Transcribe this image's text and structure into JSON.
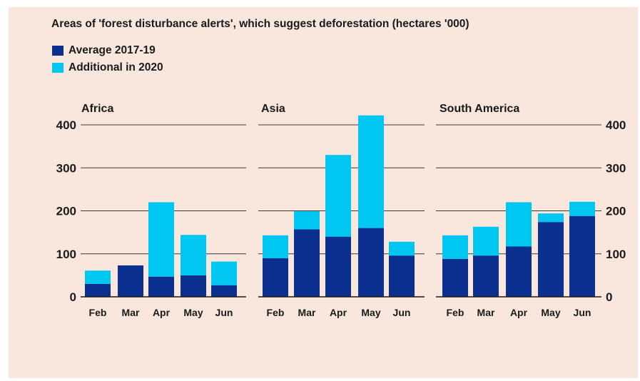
{
  "chart_data": {
    "type": "bar",
    "stacked": true,
    "title": "Areas of 'forest disturbance alerts', which suggest deforestation (hectares '000)",
    "ylim": [
      0,
      400
    ],
    "yticks": [
      0,
      100,
      200,
      300,
      400
    ],
    "legend": [
      {
        "name": "Average 2017-19",
        "color": "#0b2f8f"
      },
      {
        "name": "Additional in 2020",
        "color": "#00c6f2"
      }
    ],
    "categories": [
      "Feb",
      "Mar",
      "Apr",
      "May",
      "Jun"
    ],
    "panels": [
      {
        "title": "Africa",
        "series": [
          {
            "name": "Average 2017-19",
            "values": [
              30,
              73,
              47,
              50,
              27
            ]
          },
          {
            "name": "Additional in 2020",
            "values": [
              31,
              0,
              173,
              94,
              55
            ]
          }
        ]
      },
      {
        "title": "Asia",
        "series": [
          {
            "name": "Average 2017-19",
            "values": [
              90,
              157,
              140,
              160,
              96
            ]
          },
          {
            "name": "Additional in 2020",
            "values": [
              53,
              42,
              190,
              262,
              32
            ]
          }
        ]
      },
      {
        "title": "South America",
        "series": [
          {
            "name": "Average 2017-19",
            "values": [
              88,
              96,
              117,
              174,
              188
            ]
          },
          {
            "name": "Additional in 2020",
            "values": [
              55,
              67,
              103,
              20,
              33
            ]
          }
        ]
      }
    ]
  }
}
